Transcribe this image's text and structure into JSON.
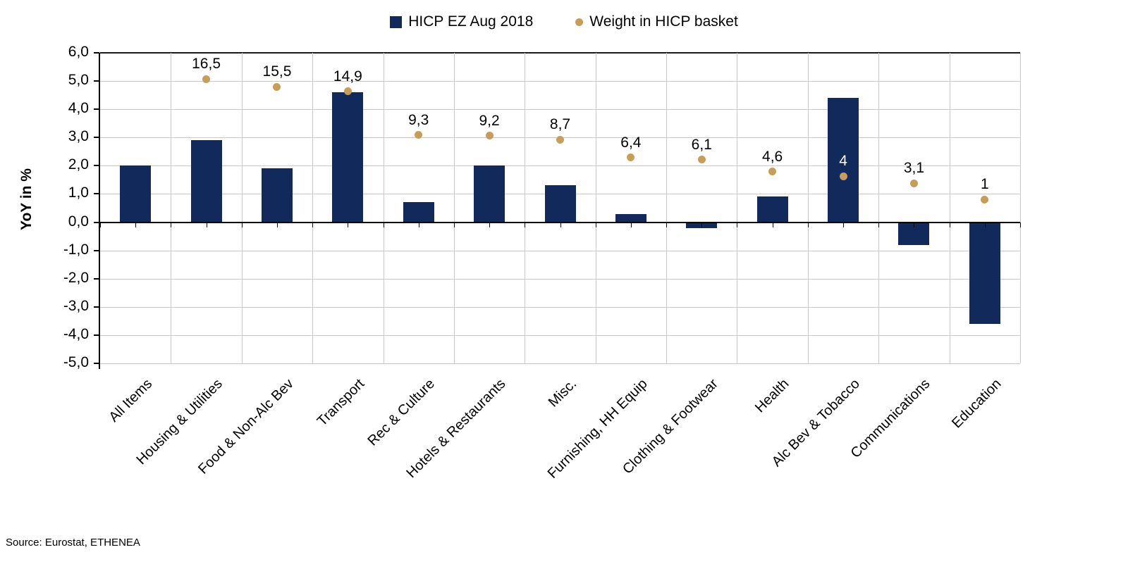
{
  "legend": [
    {
      "label": "HICP EZ Aug 2018",
      "marker": "square",
      "color": "#12295B"
    },
    {
      "label": "Weight in HICP basket",
      "marker": "dot",
      "color": "#C79D58"
    }
  ],
  "source_note": "Source: Eurostat, ETHENEA",
  "chart_data": {
    "type": "bar",
    "title": "",
    "xlabel": "",
    "ylabel": "YoY in %",
    "ylim": [
      -5.0,
      6.0
    ],
    "ytick_step": 1.0,
    "ytick_labels": [
      "6,0",
      "5,0",
      "4,0",
      "3,0",
      "2,0",
      "1,0",
      "0,0",
      "-1,0",
      "-2,0",
      "-3,0",
      "-4,0",
      "-5,0"
    ],
    "grid": true,
    "legend_position": "top-center",
    "categories": [
      "All Items",
      "Housing & Utilities",
      "Food & Non-Alc Bev",
      "Transport",
      "Rec & Culture",
      "Hotels & Restaurants",
      "Misc.",
      "Furnishing, HH Equip",
      "Clothing & Footwear",
      "Health",
      "Alc Bev & Tobacco",
      "Communications",
      "Education"
    ],
    "series": [
      {
        "name": "HICP EZ Aug 2018",
        "type": "bar",
        "color": "#12295B",
        "values": [
          2.0,
          2.9,
          1.9,
          4.6,
          0.7,
          2.0,
          1.3,
          0.3,
          -0.2,
          0.9,
          4.4,
          -0.8,
          -3.6
        ]
      },
      {
        "name": "Weight in HICP basket",
        "type": "scatter",
        "color": "#C79D58",
        "values": [
          null,
          16.5,
          15.5,
          14.9,
          9.3,
          9.2,
          8.7,
          6.4,
          6.1,
          4.6,
          4,
          3.1,
          1
        ],
        "labels": [
          null,
          "16,5",
          "15,5",
          "14,9",
          "9,3",
          "9,2",
          "8,7",
          "6,4",
          "6,1",
          "4,6",
          "4",
          "3,1",
          "1"
        ],
        "label_colors": [
          null,
          "#000000",
          "#000000",
          "#000000",
          "#000000",
          "#000000",
          "#000000",
          "#000000",
          "#000000",
          "#000000",
          "#FFFFFF",
          "#000000",
          "#000000"
        ],
        "plotted_on_primary_axis": [
          null,
          5.07,
          4.8,
          4.64,
          3.09,
          3.06,
          2.92,
          2.29,
          2.21,
          1.79,
          1.63,
          1.38,
          0.8
        ],
        "secondary_to_primary_mapping": {
          "slope": 0.276,
          "intercept": 0.524
        }
      }
    ]
  }
}
